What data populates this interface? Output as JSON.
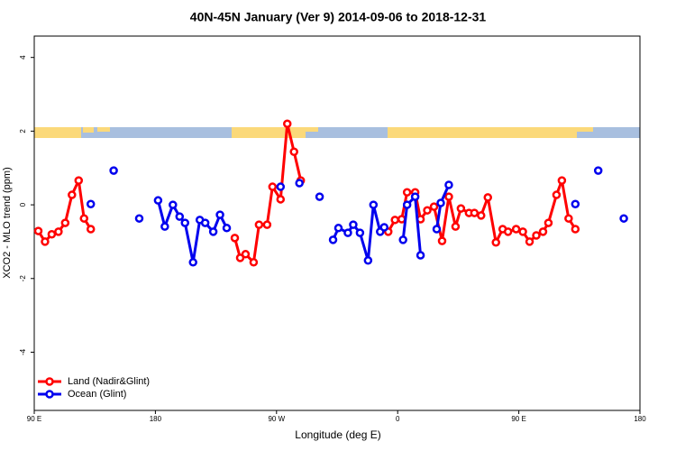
{
  "chart_data": {
    "type": "line",
    "title": "40N-45N January (Ver 9)   2014-09-06 to 2018-12-31",
    "x_label": "Longitude (deg E)",
    "y_label": "XCO2 - MLO trend (ppm)",
    "xlim": [
      90,
      540
    ],
    "xticks": [
      {
        "value": 90,
        "label": "90 E"
      },
      {
        "value": 180,
        "label": "180"
      },
      {
        "value": 270,
        "label": "90 W"
      },
      {
        "value": 360,
        "label": "0"
      },
      {
        "value": 450,
        "label": "90 E"
      },
      {
        "value": 540,
        "label": "180"
      }
    ],
    "ylim": [
      -5.58,
      4.58
    ],
    "yticks": [
      -4,
      -2,
      0,
      2,
      4
    ],
    "legend": "bottom-left",
    "series": [
      {
        "name": "Land (Nadir&Glint)",
        "color": "#ff0000",
        "x": [
          93,
          98,
          103,
          108,
          113,
          118,
          123,
          127,
          132,
          null,
          239,
          243,
          247,
          253,
          257,
          263,
          267,
          273,
          278,
          283,
          288,
          null,
          353,
          358,
          363,
          367,
          373,
          377,
          382,
          387,
          393,
          398,
          403,
          407,
          413,
          417,
          422,
          427,
          433,
          438,
          442,
          448,
          453,
          458,
          463,
          468,
          472,
          478,
          482,
          487,
          492
        ],
        "values": [
          -0.71,
          -1.0,
          -0.8,
          -0.73,
          -0.49,
          0.27,
          0.66,
          -0.37,
          -0.66,
          null,
          -0.9,
          -1.44,
          -1.34,
          -1.56,
          -0.54,
          -0.54,
          0.49,
          0.15,
          2.2,
          1.44,
          0.66,
          null,
          -0.73,
          -0.41,
          -0.39,
          0.34,
          0.34,
          -0.39,
          -0.15,
          -0.05,
          -0.98,
          0.22,
          -0.59,
          -0.1,
          -0.22,
          -0.22,
          -0.29,
          0.2,
          -1.02,
          -0.66,
          -0.73,
          -0.66,
          -0.73,
          -1.0,
          -0.83,
          -0.73,
          -0.49,
          0.27,
          0.66,
          -0.37,
          -0.66
        ]
      },
      {
        "name": "Ocean (Glint)",
        "color": "#0000ee",
        "x": [
          132,
          null,
          149,
          null,
          168,
          null,
          182,
          187,
          193,
          198,
          202,
          208,
          213,
          217,
          223,
          228,
          233,
          null,
          273,
          null,
          287,
          null,
          302,
          null,
          312,
          316,
          323,
          327,
          332,
          338,
          342,
          347,
          350,
          null,
          364,
          367,
          373,
          377,
          null,
          389,
          392,
          398,
          null,
          492,
          null,
          509,
          null,
          528
        ],
        "values": [
          0.02,
          null,
          0.93,
          null,
          -0.37,
          null,
          0.12,
          -0.59,
          0.0,
          -0.32,
          -0.49,
          -1.56,
          -0.41,
          -0.49,
          -0.73,
          -0.27,
          -0.63,
          null,
          0.49,
          null,
          0.59,
          null,
          0.22,
          null,
          -0.95,
          -0.63,
          -0.76,
          -0.54,
          -0.76,
          -1.51,
          0.0,
          -0.73,
          -0.61,
          null,
          -0.95,
          0.0,
          0.22,
          -1.37,
          null,
          -0.66,
          0.05,
          0.54,
          null,
          0.02,
          null,
          0.93,
          null,
          -0.37
        ]
      }
    ]
  }
}
